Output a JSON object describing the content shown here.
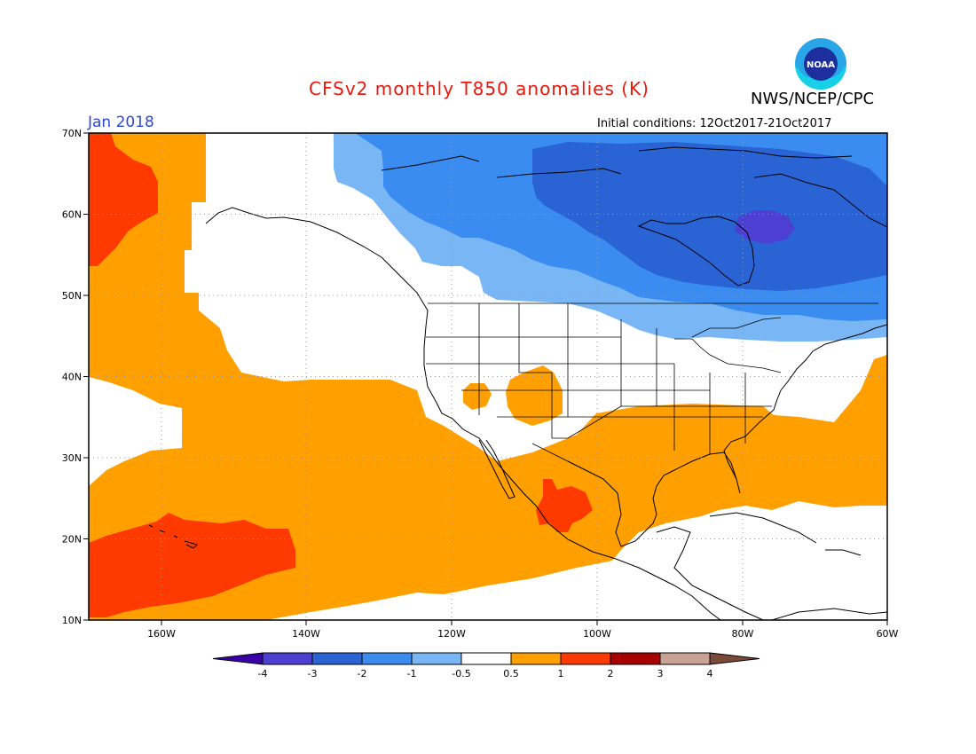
{
  "title": "CFSv2 monthly T850 anomalies (K)",
  "agency": "NWS/NCEP/CPC",
  "logo_text": "NOAA",
  "valid_month": "Jan 2018",
  "initial_conditions": "Initial conditions: 12Oct2017-21Oct2017",
  "lat_labels": [
    "70N",
    "60N",
    "50N",
    "40N",
    "30N",
    "20N",
    "10N"
  ],
  "lon_labels": [
    "160W",
    "140W",
    "120W",
    "100W",
    "80W",
    "60W"
  ],
  "colorbar": {
    "labels": [
      "-4",
      "-3",
      "-2",
      "-1",
      "-0.5",
      "0.5",
      "1",
      "2",
      "3",
      "4"
    ],
    "colors": [
      "#3a00a8",
      "#4c3fd2",
      "#2a63d4",
      "#3b8cf0",
      "#78b6f5",
      "#ffffff",
      "#ff9f00",
      "#ff3a00",
      "#a80000",
      "#c8a394",
      "#7a4a3a"
    ]
  },
  "map": {
    "lat_range": [
      10,
      70
    ],
    "lon_range": [
      -170,
      -60
    ],
    "colors": {
      "pos1": "#ff9f00",
      "pos2": "#ff3a00",
      "neg1": "#78b6f5",
      "neg2": "#3b8cf0",
      "neg3": "#2a63d4",
      "neg4": "#4c3fd2"
    }
  }
}
